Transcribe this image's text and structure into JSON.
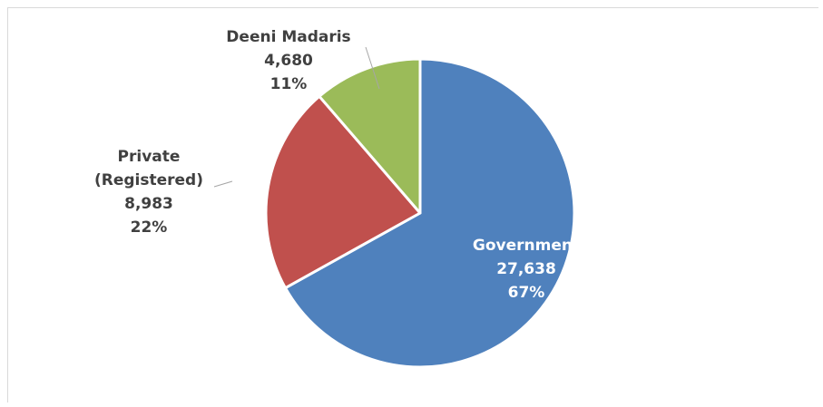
{
  "chart_data": {
    "type": "pie",
    "title": "",
    "slices": [
      {
        "label_lines": [
          "Government"
        ],
        "value": 27638,
        "value_text": "27,638",
        "percent_text": "67%",
        "color": "#4f81bd"
      },
      {
        "label_lines": [
          "Private",
          "(Registered)"
        ],
        "value": 8983,
        "value_text": "8,983",
        "percent_text": "22%",
        "color": "#c0504d"
      },
      {
        "label_lines": [
          "Deeni Madaris"
        ],
        "value": 4680,
        "value_text": "4,680",
        "percent_text": "11%",
        "color": "#9bbb59"
      }
    ],
    "start": "12 o'clock",
    "direction": "clockwise",
    "label_color_inside": "#ffffff",
    "label_color_outside": "#404040"
  }
}
